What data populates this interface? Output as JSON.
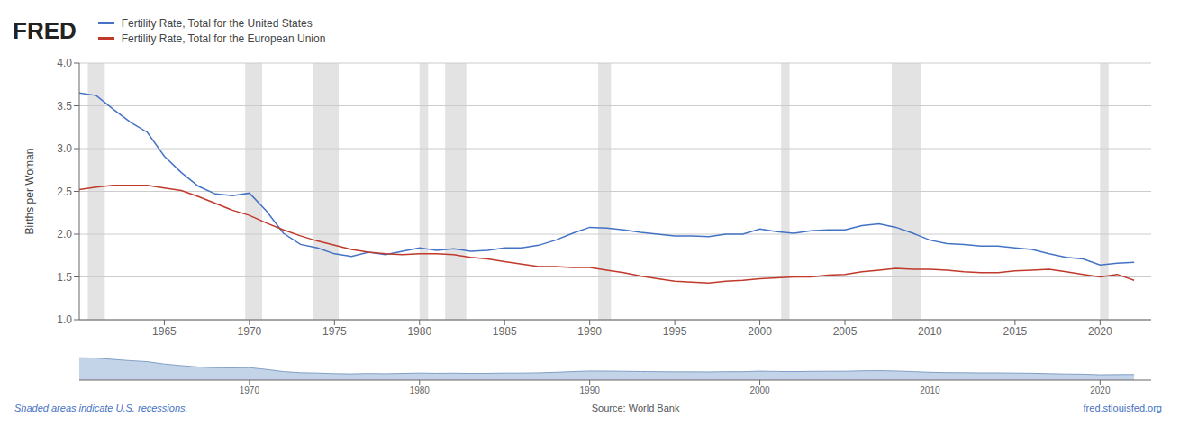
{
  "chart_data": [
    {
      "type": "line",
      "x": [
        1960,
        1961,
        1962,
        1963,
        1964,
        1965,
        1966,
        1967,
        1968,
        1969,
        1970,
        1971,
        1972,
        1973,
        1974,
        1975,
        1976,
        1977,
        1978,
        1979,
        1980,
        1981,
        1982,
        1983,
        1984,
        1985,
        1986,
        1987,
        1988,
        1989,
        1990,
        1991,
        1992,
        1993,
        1994,
        1995,
        1996,
        1997,
        1998,
        1999,
        2000,
        2001,
        2002,
        2003,
        2004,
        2005,
        2006,
        2007,
        2008,
        2009,
        2010,
        2011,
        2012,
        2013,
        2014,
        2015,
        2016,
        2017,
        2018,
        2019,
        2020,
        2021,
        2022
      ],
      "series": [
        {
          "name": "Fertility Rate, Total for the United States",
          "color": "#4472c4",
          "values": [
            3.65,
            3.62,
            3.46,
            3.31,
            3.19,
            2.91,
            2.72,
            2.56,
            2.47,
            2.45,
            2.48,
            2.27,
            2.01,
            1.88,
            1.84,
            1.77,
            1.74,
            1.79,
            1.76,
            1.8,
            1.84,
            1.81,
            1.83,
            1.8,
            1.81,
            1.84,
            1.84,
            1.87,
            1.93,
            2.01,
            2.08,
            2.07,
            2.05,
            2.02,
            2.0,
            1.98,
            1.98,
            1.97,
            2.0,
            2.0,
            2.06,
            2.03,
            2.01,
            2.04,
            2.05,
            2.05,
            2.1,
            2.12,
            2.08,
            2.01,
            1.93,
            1.89,
            1.88,
            1.86,
            1.86,
            1.84,
            1.82,
            1.77,
            1.73,
            1.71,
            1.64,
            1.66,
            1.67
          ]
        },
        {
          "name": "Fertility Rate, Total for the European Union",
          "color": "#c0392b",
          "values": [
            2.52,
            2.55,
            2.57,
            2.57,
            2.57,
            2.54,
            2.51,
            2.44,
            2.36,
            2.28,
            2.22,
            2.13,
            2.05,
            1.98,
            1.92,
            1.87,
            1.82,
            1.79,
            1.77,
            1.76,
            1.77,
            1.77,
            1.76,
            1.73,
            1.71,
            1.68,
            1.65,
            1.62,
            1.62,
            1.61,
            1.61,
            1.58,
            1.55,
            1.51,
            1.48,
            1.45,
            1.44,
            1.43,
            1.45,
            1.46,
            1.48,
            1.49,
            1.5,
            1.5,
            1.52,
            1.53,
            1.56,
            1.58,
            1.6,
            1.59,
            1.59,
            1.58,
            1.56,
            1.55,
            1.55,
            1.57,
            1.58,
            1.59,
            1.56,
            1.53,
            1.5,
            1.53,
            1.46
          ]
        }
      ],
      "ylabel": "Births per Woman",
      "xlim": [
        1960,
        2023
      ],
      "xticks": [
        1965,
        1970,
        1975,
        1980,
        1985,
        1990,
        1995,
        2000,
        2005,
        2010,
        2015,
        2020
      ],
      "ylim": [
        1.0,
        4.0
      ],
      "yticks": [
        {
          "value": 1.0,
          "label": "1.0"
        },
        1.5,
        {
          "value": 2.0,
          "label": "2.0"
        },
        2.5,
        {
          "value": 3.0,
          "label": "3.0"
        },
        3.5,
        {
          "value": 4.0,
          "label": "4.0"
        }
      ],
      "grid": true,
      "legend": "top",
      "recessions": [
        [
          1960.5,
          1961.5
        ],
        [
          1969.75,
          1970.75
        ],
        [
          1973.75,
          1975.25
        ],
        [
          1980.0,
          1980.5
        ],
        [
          1981.5,
          1982.75
        ],
        [
          1990.5,
          1991.25
        ],
        [
          2001.25,
          2001.75
        ],
        [
          2007.75,
          2009.5
        ],
        [
          2020.0,
          2020.5
        ]
      ],
      "annotations": [
        "FRED",
        "Shaded areas indicate U.S. recessions.",
        "Source: World Bank",
        "fred.stlouisfed.org"
      ]
    },
    {
      "type": "area",
      "x": [
        1960,
        1961,
        1962,
        1963,
        1964,
        1965,
        1966,
        1967,
        1968,
        1969,
        1970,
        1971,
        1972,
        1973,
        1974,
        1975,
        1976,
        1977,
        1978,
        1979,
        1980,
        1981,
        1982,
        1983,
        1984,
        1985,
        1986,
        1987,
        1988,
        1989,
        1990,
        1991,
        1992,
        1993,
        1994,
        1995,
        1996,
        1997,
        1998,
        1999,
        2000,
        2001,
        2002,
        2003,
        2004,
        2005,
        2006,
        2007,
        2008,
        2009,
        2010,
        2011,
        2012,
        2013,
        2014,
        2015,
        2016,
        2017,
        2018,
        2019,
        2020,
        2021,
        2022
      ],
      "series": [
        {
          "values": [
            3.65,
            3.62,
            3.46,
            3.31,
            3.19,
            2.91,
            2.72,
            2.56,
            2.47,
            2.45,
            2.48,
            2.27,
            2.01,
            1.88,
            1.84,
            1.77,
            1.74,
            1.79,
            1.76,
            1.8,
            1.84,
            1.81,
            1.83,
            1.8,
            1.81,
            1.84,
            1.84,
            1.87,
            1.93,
            2.01,
            2.08,
            2.07,
            2.05,
            2.02,
            2.0,
            1.98,
            1.98,
            1.97,
            2.0,
            2.0,
            2.06,
            2.03,
            2.01,
            2.04,
            2.05,
            2.05,
            2.1,
            2.12,
            2.08,
            2.01,
            1.93,
            1.89,
            1.88,
            1.86,
            1.86,
            1.84,
            1.82,
            1.77,
            1.73,
            1.71,
            1.64,
            1.66,
            1.67
          ]
        }
      ],
      "xlim": [
        1960,
        2023
      ],
      "xticks": [
        1970,
        1980,
        1990,
        2000,
        2010,
        2020
      ],
      "ylim": [
        1.0,
        4.0
      ],
      "grid": false,
      "tick_labels": "x"
    }
  ]
}
